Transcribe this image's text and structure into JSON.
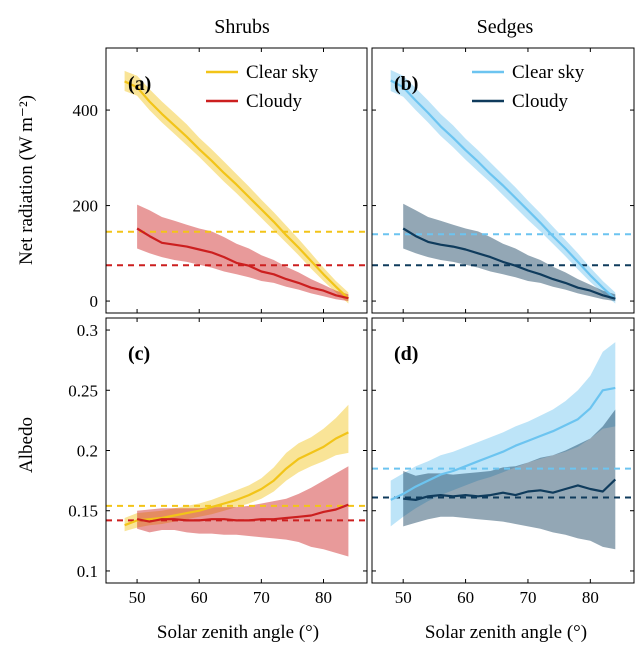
{
  "columns": [
    "Shrubs",
    "Sedges"
  ],
  "xlabel": "Solar zenith angle (°)",
  "colors": {
    "clear_shrubs": "#f2c418",
    "cloudy_shrubs": "#cc1f1f",
    "clear_sedges": "#6cc4f0",
    "cloudy_sedges": "#0f3b5c"
  },
  "chart_data": [
    {
      "type": "line",
      "panel": "(a)",
      "column_title": "Shrubs",
      "ylabel": "Net radiation (W m⁻²)",
      "xlim": [
        45,
        87
      ],
      "ylim": [
        -25,
        530
      ],
      "xticks": [
        50,
        60,
        70,
        80
      ],
      "yticks": [
        0,
        200,
        400
      ],
      "legend": "top-right",
      "series": [
        {
          "name": "Clear sky",
          "color": "#f2c418",
          "x": [
            48,
            50,
            52,
            54,
            56,
            58,
            60,
            62,
            64,
            66,
            68,
            70,
            72,
            74,
            76,
            78,
            80,
            82,
            84
          ],
          "y": [
            460,
            448,
            418,
            392,
            368,
            344,
            318,
            294,
            268,
            244,
            218,
            192,
            166,
            138,
            112,
            84,
            56,
            30,
            5
          ],
          "lower": [
            440,
            430,
            400,
            374,
            350,
            326,
            302,
            276,
            250,
            226,
            200,
            174,
            148,
            122,
            96,
            68,
            42,
            18,
            -5
          ],
          "upper": [
            482,
            472,
            444,
            418,
            394,
            370,
            342,
            318,
            292,
            266,
            240,
            212,
            186,
            158,
            130,
            100,
            70,
            42,
            18
          ],
          "mean": 145
        },
        {
          "name": "Cloudy",
          "color": "#cc1f1f",
          "x": [
            50,
            52,
            54,
            56,
            58,
            60,
            62,
            64,
            66,
            68,
            70,
            72,
            74,
            76,
            78,
            80,
            82,
            84
          ],
          "y": [
            152,
            136,
            122,
            118,
            114,
            108,
            102,
            92,
            80,
            74,
            62,
            56,
            46,
            38,
            28,
            22,
            12,
            6
          ],
          "lower": [
            110,
            100,
            92,
            86,
            82,
            76,
            70,
            62,
            56,
            50,
            42,
            38,
            30,
            24,
            16,
            10,
            4,
            0
          ],
          "upper": [
            202,
            190,
            176,
            168,
            160,
            152,
            146,
            134,
            120,
            110,
            96,
            86,
            72,
            60,
            46,
            34,
            22,
            14
          ],
          "mean": 75
        }
      ]
    },
    {
      "type": "line",
      "panel": "(b)",
      "column_title": "Sedges",
      "xlim": [
        45,
        87
      ],
      "ylim": [
        -25,
        530
      ],
      "xticks": [
        50,
        60,
        70,
        80
      ],
      "yticks": [
        0,
        200,
        400
      ],
      "legend": "top-right",
      "series": [
        {
          "name": "Clear sky",
          "color": "#6cc4f0",
          "x": [
            48,
            50,
            52,
            54,
            56,
            58,
            60,
            62,
            64,
            66,
            68,
            70,
            72,
            74,
            76,
            78,
            80,
            82,
            84
          ],
          "y": [
            462,
            448,
            420,
            394,
            366,
            342,
            316,
            292,
            266,
            242,
            216,
            190,
            164,
            136,
            110,
            82,
            54,
            28,
            4
          ],
          "lower": [
            440,
            428,
            400,
            374,
            346,
            322,
            296,
            272,
            248,
            222,
            196,
            170,
            146,
            120,
            94,
            66,
            40,
            16,
            -5
          ],
          "upper": [
            484,
            472,
            446,
            420,
            392,
            368,
            340,
            316,
            290,
            264,
            238,
            210,
            184,
            156,
            128,
            100,
            70,
            42,
            18
          ],
          "mean": 140
        },
        {
          "name": "Cloudy",
          "color": "#0f3b5c",
          "x": [
            50,
            52,
            54,
            56,
            58,
            60,
            62,
            64,
            66,
            68,
            70,
            72,
            74,
            76,
            78,
            80,
            82,
            84
          ],
          "y": [
            152,
            136,
            124,
            118,
            114,
            108,
            100,
            92,
            82,
            74,
            64,
            56,
            46,
            38,
            28,
            22,
            12,
            5
          ],
          "lower": [
            110,
            100,
            92,
            86,
            82,
            76,
            70,
            62,
            56,
            50,
            42,
            38,
            30,
            24,
            16,
            10,
            4,
            0
          ],
          "upper": [
            204,
            190,
            176,
            168,
            160,
            152,
            146,
            134,
            120,
            110,
            96,
            86,
            72,
            60,
            46,
            34,
            22,
            14
          ],
          "mean": 75
        }
      ]
    },
    {
      "type": "line",
      "panel": "(c)",
      "ylabel": "Albedo",
      "xlabel": "Solar zenith angle (°)",
      "xlim": [
        45,
        87
      ],
      "ylim": [
        0.09,
        0.31
      ],
      "xticks": [
        50,
        60,
        70,
        80
      ],
      "yticks": [
        0.1,
        0.15,
        0.2,
        0.25,
        0.3
      ],
      "ytick_labels": [
        "0.1",
        "0.15",
        "0.2",
        "0.25",
        "0.3"
      ],
      "series": [
        {
          "name": "Clear sky",
          "color": "#f2c418",
          "x": [
            48,
            50,
            52,
            54,
            56,
            58,
            60,
            62,
            64,
            66,
            68,
            70,
            72,
            74,
            76,
            78,
            80,
            82,
            84
          ],
          "y": [
            0.138,
            0.142,
            0.143,
            0.144,
            0.146,
            0.148,
            0.15,
            0.153,
            0.156,
            0.159,
            0.163,
            0.168,
            0.175,
            0.185,
            0.193,
            0.198,
            0.203,
            0.21,
            0.215
          ],
          "lower": [
            0.133,
            0.136,
            0.138,
            0.139,
            0.141,
            0.143,
            0.145,
            0.147,
            0.15,
            0.153,
            0.156,
            0.16,
            0.166,
            0.175,
            0.182,
            0.187,
            0.191,
            0.196,
            0.198
          ],
          "upper": [
            0.144,
            0.148,
            0.149,
            0.15,
            0.152,
            0.154,
            0.156,
            0.159,
            0.163,
            0.167,
            0.171,
            0.177,
            0.186,
            0.198,
            0.206,
            0.211,
            0.218,
            0.227,
            0.238
          ],
          "mean": 0.154
        },
        {
          "name": "Cloudy",
          "color": "#cc1f1f",
          "x": [
            50,
            52,
            54,
            56,
            58,
            60,
            62,
            64,
            66,
            68,
            70,
            72,
            74,
            76,
            78,
            80,
            82,
            84
          ],
          "y": [
            0.143,
            0.141,
            0.143,
            0.143,
            0.142,
            0.142,
            0.143,
            0.143,
            0.142,
            0.142,
            0.143,
            0.143,
            0.144,
            0.145,
            0.146,
            0.149,
            0.151,
            0.155
          ],
          "lower": [
            0.135,
            0.132,
            0.134,
            0.134,
            0.132,
            0.131,
            0.131,
            0.13,
            0.13,
            0.129,
            0.128,
            0.127,
            0.126,
            0.124,
            0.12,
            0.118,
            0.115,
            0.112
          ],
          "upper": [
            0.15,
            0.151,
            0.152,
            0.152,
            0.152,
            0.152,
            0.153,
            0.153,
            0.153,
            0.154,
            0.156,
            0.158,
            0.16,
            0.164,
            0.169,
            0.175,
            0.181,
            0.187
          ],
          "mean": 0.142
        }
      ]
    },
    {
      "type": "line",
      "panel": "(d)",
      "xlabel": "Solar zenith angle (°)",
      "xlim": [
        45,
        87
      ],
      "ylim": [
        0.09,
        0.31
      ],
      "xticks": [
        50,
        60,
        70,
        80
      ],
      "yticks": [
        0.1,
        0.15,
        0.2,
        0.25,
        0.3
      ],
      "series": [
        {
          "name": "Clear sky",
          "color": "#6cc4f0",
          "x": [
            48,
            50,
            52,
            54,
            56,
            58,
            60,
            62,
            64,
            66,
            68,
            70,
            72,
            74,
            76,
            78,
            80,
            82,
            84
          ],
          "y": [
            0.159,
            0.164,
            0.17,
            0.175,
            0.18,
            0.183,
            0.187,
            0.191,
            0.195,
            0.199,
            0.204,
            0.208,
            0.212,
            0.216,
            0.221,
            0.226,
            0.235,
            0.25,
            0.252
          ],
          "lower": [
            0.137,
            0.145,
            0.152,
            0.158,
            0.163,
            0.167,
            0.171,
            0.175,
            0.178,
            0.182,
            0.186,
            0.19,
            0.193,
            0.196,
            0.199,
            0.203,
            0.21,
            0.218,
            0.22
          ],
          "upper": [
            0.175,
            0.181,
            0.187,
            0.191,
            0.196,
            0.199,
            0.203,
            0.207,
            0.211,
            0.215,
            0.22,
            0.224,
            0.229,
            0.234,
            0.241,
            0.25,
            0.262,
            0.282,
            0.29
          ],
          "mean": 0.185
        },
        {
          "name": "Cloudy",
          "color": "#0f3b5c",
          "x": [
            50,
            52,
            54,
            56,
            58,
            60,
            62,
            64,
            66,
            68,
            70,
            72,
            74,
            76,
            78,
            80,
            82,
            84
          ],
          "y": [
            0.16,
            0.159,
            0.162,
            0.163,
            0.162,
            0.163,
            0.162,
            0.163,
            0.165,
            0.163,
            0.166,
            0.167,
            0.165,
            0.168,
            0.171,
            0.168,
            0.166,
            0.176
          ],
          "lower": [
            0.137,
            0.14,
            0.143,
            0.145,
            0.145,
            0.144,
            0.143,
            0.142,
            0.141,
            0.139,
            0.137,
            0.135,
            0.132,
            0.13,
            0.127,
            0.125,
            0.12,
            0.118
          ],
          "upper": [
            0.183,
            0.179,
            0.181,
            0.181,
            0.18,
            0.181,
            0.182,
            0.183,
            0.186,
            0.187,
            0.19,
            0.194,
            0.196,
            0.2,
            0.205,
            0.21,
            0.22,
            0.234
          ],
          "mean": 0.161
        }
      ]
    }
  ]
}
